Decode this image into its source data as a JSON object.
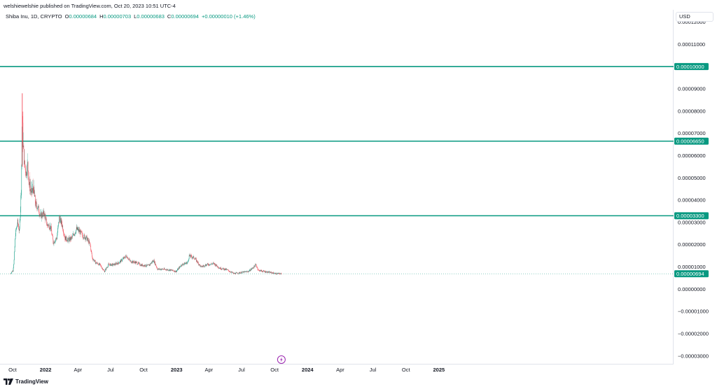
{
  "header": {
    "published_by": "welshiewelshie published on TradingView.com, Oct 20, 2023 10:51 UTC-4"
  },
  "legend": {
    "symbol": "Shiba Inu, 1D, CRYPTO",
    "open_label": "O",
    "open": "0.00000684",
    "high_label": "H",
    "high": "0.00000703",
    "low_label": "L",
    "low": "0.00000683",
    "close_label": "C",
    "close": "0.00000694",
    "change": "+0.00000010 (+1.46%)"
  },
  "price_scale": {
    "currency": "USD",
    "ticks": [
      {
        "label": "0.00012000",
        "value": 0.00012
      },
      {
        "label": "0.00011000",
        "value": 0.00011
      },
      {
        "label": "0.00009000",
        "value": 9e-05
      },
      {
        "label": "0.00008000",
        "value": 8e-05
      },
      {
        "label": "0.00007000",
        "value": 7e-05
      },
      {
        "label": "0.00006000",
        "value": 6e-05
      },
      {
        "label": "0.00005000",
        "value": 5e-05
      },
      {
        "label": "0.00004000",
        "value": 4e-05
      },
      {
        "label": "0.00003000",
        "value": 3e-05
      },
      {
        "label": "0.00002000",
        "value": 2e-05
      },
      {
        "label": "0.00001000",
        "value": 1e-05
      },
      {
        "label": "0.00000000",
        "value": 0
      },
      {
        "label": "−0.00001000",
        "value": -1e-05
      },
      {
        "label": "−0.00002000",
        "value": -2e-05
      },
      {
        "label": "−0.00003000",
        "value": -3e-05
      }
    ],
    "range": [
      -3.35e-05,
      0.0001255
    ]
  },
  "horizontal_lines": [
    {
      "label": "0.00010000",
      "value": 0.0001,
      "color": "#089981"
    },
    {
      "label": "0.00006650",
      "value": 6.65e-05,
      "color": "#089981"
    },
    {
      "label": "0.00003300",
      "value": 3.3e-05,
      "color": "#089981"
    }
  ],
  "last_price": {
    "label": "0.00000694",
    "value": 6.94e-06,
    "color": "#089981"
  },
  "time_axis": {
    "ticks": [
      {
        "label": "Oct",
        "day": 0
      },
      {
        "label": "2022",
        "day": 92
      },
      {
        "label": "Apr",
        "day": 182
      },
      {
        "label": "Jul",
        "day": 273
      },
      {
        "label": "Oct",
        "day": 365
      },
      {
        "label": "2023",
        "day": 457
      },
      {
        "label": "Apr",
        "day": 547
      },
      {
        "label": "Jul",
        "day": 638
      },
      {
        "label": "Oct",
        "day": 730
      },
      {
        "label": "2024",
        "day": 822
      },
      {
        "label": "Apr",
        "day": 913
      },
      {
        "label": "Jul",
        "day": 1004
      },
      {
        "label": "Oct",
        "day": 1096
      },
      {
        "label": "2025",
        "day": 1188
      }
    ],
    "bold": [
      "2022",
      "2023",
      "2024",
      "2025"
    ]
  },
  "chart_data": {
    "type": "line",
    "x_unit": "date",
    "points": [
      [
        "2021-09-25",
        7e-06
      ],
      [
        "2021-10-02",
        8.5e-06
      ],
      [
        "2021-10-05",
        1.3e-05
      ],
      [
        "2021-10-09",
        2.5e-05
      ],
      [
        "2021-10-15",
        3e-05
      ],
      [
        "2021-10-20",
        2.6e-05
      ],
      [
        "2021-10-25",
        4.5e-05
      ],
      [
        "2021-10-28",
        7.8e-05
      ],
      [
        "2021-10-30",
        6.6e-05
      ],
      [
        "2021-11-03",
        5.6e-05
      ],
      [
        "2021-11-08",
        5.2e-05
      ],
      [
        "2021-11-12",
        5.6e-05
      ],
      [
        "2021-11-16",
        4.7e-05
      ],
      [
        "2021-11-22",
        4.3e-05
      ],
      [
        "2021-11-28",
        4.5e-05
      ],
      [
        "2021-12-04",
        3.8e-05
      ],
      [
        "2021-12-10",
        3.7e-05
      ],
      [
        "2021-12-18",
        3.3e-05
      ],
      [
        "2021-12-28",
        3.4e-05
      ],
      [
        "2022-01-05",
        2.9e-05
      ],
      [
        "2022-01-15",
        2.8e-05
      ],
      [
        "2022-01-22",
        2.1e-05
      ],
      [
        "2022-02-01",
        2.3e-05
      ],
      [
        "2022-02-08",
        3.2e-05
      ],
      [
        "2022-02-16",
        2.9e-05
      ],
      [
        "2022-02-24",
        2.3e-05
      ],
      [
        "2022-03-05",
        2.2e-05
      ],
      [
        "2022-03-15",
        2.3e-05
      ],
      [
        "2022-03-28",
        2.7e-05
      ],
      [
        "2022-04-05",
        2.6e-05
      ],
      [
        "2022-04-15",
        2.4e-05
      ],
      [
        "2022-04-25",
        2.3e-05
      ],
      [
        "2022-05-05",
        2e-05
      ],
      [
        "2022-05-11",
        1.4e-05
      ],
      [
        "2022-05-20",
        1.2e-05
      ],
      [
        "2022-06-01",
        1.1e-05
      ],
      [
        "2022-06-14",
        8e-06
      ],
      [
        "2022-06-25",
        1.1e-05
      ],
      [
        "2022-07-10",
        1.1e-05
      ],
      [
        "2022-07-25",
        1.2e-05
      ],
      [
        "2022-08-14",
        1.5e-05
      ],
      [
        "2022-08-25",
        1.25e-05
      ],
      [
        "2022-09-10",
        1.2e-05
      ],
      [
        "2022-09-25",
        1.08e-05
      ],
      [
        "2022-10-15",
        1.05e-05
      ],
      [
        "2022-10-29",
        1.3e-05
      ],
      [
        "2022-11-09",
        9e-06
      ],
      [
        "2022-11-25",
        9e-06
      ],
      [
        "2022-12-15",
        8.6e-06
      ],
      [
        "2022-12-31",
        8e-06
      ],
      [
        "2023-01-15",
        1.1e-05
      ],
      [
        "2023-02-01",
        1.2e-05
      ],
      [
        "2023-02-05",
        1.5e-05
      ],
      [
        "2023-02-20",
        1.4e-05
      ],
      [
        "2023-03-10",
        1e-05
      ],
      [
        "2023-03-25",
        1.1e-05
      ],
      [
        "2023-04-15",
        1.15e-05
      ],
      [
        "2023-05-01",
        9.5e-06
      ],
      [
        "2023-05-20",
        8.8e-06
      ],
      [
        "2023-06-10",
        7e-06
      ],
      [
        "2023-06-30",
        7.5e-06
      ],
      [
        "2023-07-20",
        8e-06
      ],
      [
        "2023-08-01",
        9.5e-06
      ],
      [
        "2023-08-10",
        1.1e-05
      ],
      [
        "2023-08-17",
        8.5e-06
      ],
      [
        "2023-09-01",
        8e-06
      ],
      [
        "2023-09-20",
        7.5e-06
      ],
      [
        "2023-10-05",
        7e-06
      ],
      [
        "2023-10-20",
        6.94e-06
      ]
    ],
    "ylim": [
      -3.35e-05,
      0.0001255
    ],
    "grid": false,
    "colors": {
      "up": "#089981",
      "down": "#f23645",
      "wick": "#d8a0a6"
    }
  }
}
